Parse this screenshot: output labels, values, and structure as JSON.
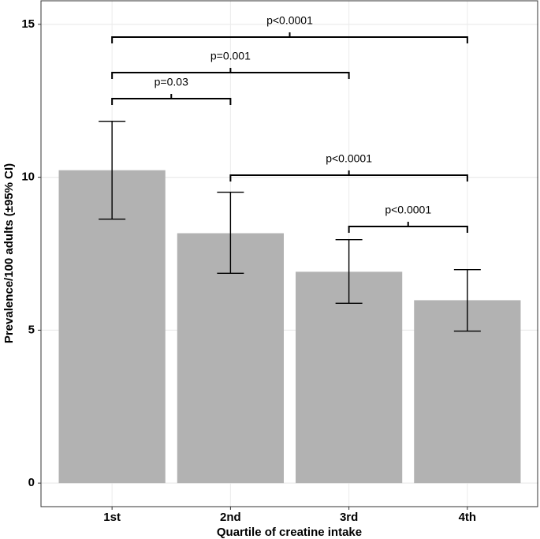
{
  "chart_data": {
    "type": "bar",
    "x_label": "Quartile of creatine intake",
    "y_label": "Prevalence/100 adults (±95% CI)",
    "categories": [
      "1st",
      "2nd",
      "3rd",
      "4th"
    ],
    "series": [
      {
        "color": "#b2b2b2",
        "values": [
          10.23,
          8.17,
          6.91,
          5.98
        ],
        "lower": [
          8.63,
          6.86,
          5.88,
          4.97
        ],
        "upper": [
          11.83,
          9.51,
          7.96,
          6.98
        ]
      }
    ],
    "ylim": [
      -0.77,
      15.77
    ],
    "yticks": [
      0,
      5,
      10,
      15
    ],
    "grid": true,
    "annotations": [
      {
        "label": "p<0.0001",
        "from": "1st",
        "to": "4th"
      },
      {
        "label": "p=0.001",
        "from": "1st",
        "to": "3rd"
      },
      {
        "label": "p=0.03",
        "from": "1st",
        "to": "2nd"
      },
      {
        "label": "p<0.0001",
        "from": "2nd",
        "to": "4th"
      },
      {
        "label": "p<0.0001",
        "from": "3rd",
        "to": "4th"
      }
    ]
  }
}
